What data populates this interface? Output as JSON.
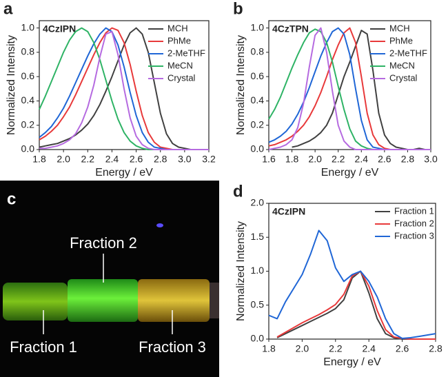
{
  "chart_data": [
    {
      "type": "line",
      "label": "a",
      "title": "4CzIPN",
      "xlabel": "Energy / eV",
      "ylabel": "Normalized Intensity",
      "x": [
        1.8,
        1.85,
        1.9,
        1.95,
        2.0,
        2.05,
        2.1,
        2.15,
        2.2,
        2.25,
        2.3,
        2.35,
        2.4,
        2.45,
        2.5,
        2.55,
        2.6,
        2.65,
        2.7,
        2.75,
        2.8,
        2.85,
        2.9,
        2.95,
        3.0,
        3.05,
        3.1,
        3.15,
        3.2
      ],
      "series": [
        {
          "name": "MCH",
          "color": "#404040",
          "values": [
            0.02,
            0.03,
            0.04,
            0.05,
            0.07,
            0.09,
            0.12,
            0.16,
            0.21,
            0.28,
            0.37,
            0.48,
            0.6,
            0.73,
            0.86,
            0.96,
            1.0,
            0.95,
            0.8,
            0.55,
            0.3,
            0.13,
            0.05,
            0.02,
            0.01,
            0,
            0,
            0,
            0
          ]
        },
        {
          "name": "PhMe",
          "color": "#e8393a",
          "values": [
            0.08,
            0.11,
            0.15,
            0.2,
            0.27,
            0.35,
            0.45,
            0.56,
            0.67,
            0.78,
            0.88,
            0.96,
            1.0,
            0.98,
            0.88,
            0.7,
            0.48,
            0.28,
            0.14,
            0.06,
            0.02,
            0.01,
            0,
            0,
            0,
            0,
            0,
            0,
            0
          ]
        },
        {
          "name": "2-MeTHF",
          "color": "#1f66d6",
          "values": [
            0.1,
            0.14,
            0.19,
            0.26,
            0.34,
            0.44,
            0.55,
            0.66,
            0.77,
            0.87,
            0.95,
            1.0,
            0.97,
            0.86,
            0.68,
            0.47,
            0.28,
            0.14,
            0.06,
            0.02,
            0.01,
            0,
            0,
            0,
            0,
            0,
            0,
            0,
            0
          ]
        },
        {
          "name": "MeCN",
          "color": "#2eb365",
          "values": [
            0.33,
            0.44,
            0.56,
            0.68,
            0.8,
            0.9,
            0.97,
            1.0,
            0.97,
            0.88,
            0.74,
            0.57,
            0.4,
            0.25,
            0.14,
            0.07,
            0.03,
            0.01,
            0,
            0,
            0,
            0,
            0,
            0,
            0,
            0,
            0,
            0,
            0
          ]
        },
        {
          "name": "Crystal",
          "color": "#b56ae0",
          "values": [
            0.01,
            0.01,
            0.02,
            0.03,
            0.05,
            0.08,
            0.13,
            0.22,
            0.35,
            0.53,
            0.76,
            0.95,
            0.97,
            0.78,
            0.5,
            0.26,
            0.11,
            0.04,
            0.01,
            0,
            0,
            0,
            0,
            0,
            0,
            0,
            0,
            0,
            0
          ]
        }
      ],
      "xlim": [
        1.8,
        3.2
      ],
      "xticks": [
        1.8,
        {
          "value": 2.0,
          "label": "2.0"
        },
        2.2,
        2.4,
        2.6,
        2.8,
        {
          "value": 3.0,
          "label": "3.0"
        },
        3.2
      ],
      "ylim": [
        0,
        1.06
      ],
      "yticks": [
        {
          "value": 0,
          "label": "0.0"
        },
        0.2,
        0.4,
        0.6,
        0.8,
        {
          "value": 1,
          "label": "1.0"
        }
      ],
      "legend": "upper right"
    },
    {
      "type": "line",
      "label": "b",
      "title": "4CzTPN",
      "xlabel": "Energy / eV",
      "ylabel": "Normalized Intensity",
      "x": [
        1.6,
        1.65,
        1.7,
        1.75,
        1.8,
        1.85,
        1.9,
        1.95,
        2.0,
        2.05,
        2.1,
        2.15,
        2.2,
        2.25,
        2.3,
        2.35,
        2.4,
        2.45,
        2.5,
        2.55,
        2.6,
        2.65,
        2.7,
        2.75,
        2.8,
        2.85,
        2.9,
        2.95,
        3.0
      ],
      "series": [
        {
          "name": "MCH",
          "color": "#404040",
          "values": [
            null,
            null,
            null,
            null,
            0.02,
            0.03,
            0.05,
            0.07,
            0.1,
            0.14,
            0.2,
            0.3,
            0.45,
            0.6,
            0.72,
            0.85,
            0.98,
            0.95,
            0.65,
            0.3,
            0.12,
            0.05,
            0.02,
            0.01,
            0,
            0,
            0.01,
            0,
            0
          ]
        },
        {
          "name": "PhMe",
          "color": "#e8393a",
          "values": [
            0.03,
            0.04,
            0.06,
            0.08,
            0.11,
            0.15,
            0.2,
            0.27,
            0.36,
            0.47,
            0.6,
            0.74,
            0.86,
            0.96,
            1.0,
            0.88,
            0.6,
            0.3,
            0.12,
            0.04,
            0.01,
            0,
            0,
            0,
            0,
            0,
            0,
            0,
            0
          ]
        },
        {
          "name": "2-MeTHF",
          "color": "#1f66d6",
          "values": [
            0.06,
            0.08,
            0.11,
            0.15,
            0.21,
            0.29,
            0.39,
            0.51,
            0.64,
            0.77,
            0.88,
            0.97,
            1.0,
            0.95,
            0.78,
            0.5,
            0.24,
            0.08,
            0.02,
            0.01,
            0,
            0,
            0,
            0,
            0,
            0,
            0,
            0,
            0
          ]
        },
        {
          "name": "MeCN",
          "color": "#2eb365",
          "values": [
            0.25,
            0.33,
            0.43,
            0.55,
            0.67,
            0.78,
            0.88,
            0.96,
            0.99,
            0.97,
            0.88,
            0.72,
            0.52,
            0.33,
            0.17,
            0.07,
            0.03,
            0.01,
            0,
            0,
            0,
            0,
            0,
            0,
            0,
            0,
            0,
            0,
            0
          ]
        },
        {
          "name": "Crystal",
          "color": "#b56ae0",
          "values": [
            0,
            0.01,
            0.02,
            0.04,
            0.08,
            0.18,
            0.38,
            0.68,
            0.94,
            1.0,
            0.8,
            0.48,
            0.2,
            0.07,
            0.02,
            0,
            0,
            0,
            0,
            0,
            0,
            0,
            0,
            0,
            0,
            0,
            0,
            0,
            0
          ]
        }
      ],
      "xlim": [
        1.6,
        3.0
      ],
      "xticks": [
        1.6,
        1.8,
        {
          "value": 2.0,
          "label": "2.0"
        },
        2.2,
        2.4,
        2.6,
        2.8,
        {
          "value": 3.0,
          "label": "3.0"
        }
      ],
      "ylim": [
        0,
        1.06
      ],
      "yticks": [
        {
          "value": 0,
          "label": "0.0"
        },
        0.2,
        0.4,
        0.6,
        0.8,
        {
          "value": 1,
          "label": "1.0"
        }
      ],
      "legend": "upper right"
    },
    {
      "type": "line",
      "label": "d",
      "title": "4CzIPN",
      "xlabel": "Energy / eV",
      "ylabel": "Normalized Intensity",
      "x": [
        1.8,
        1.85,
        1.9,
        1.95,
        2.0,
        2.05,
        2.1,
        2.15,
        2.2,
        2.25,
        2.3,
        2.35,
        2.4,
        2.45,
        2.5,
        2.55,
        2.6,
        2.65,
        2.7,
        2.75,
        2.8
      ],
      "series": [
        {
          "name": "Fraction 1",
          "color": "#404040",
          "values": [
            null,
            0.02,
            0.08,
            0.14,
            0.2,
            0.26,
            0.32,
            0.38,
            0.45,
            0.58,
            0.9,
            1.0,
            0.68,
            0.3,
            0.08,
            0.02,
            0,
            0,
            0,
            0,
            0
          ]
        },
        {
          "name": "Fraction 2",
          "color": "#e8393a",
          "values": [
            null,
            0.03,
            0.1,
            0.17,
            0.24,
            0.3,
            0.36,
            0.43,
            0.51,
            0.66,
            0.93,
            1.0,
            0.78,
            0.42,
            0.14,
            0.03,
            0.01,
            0,
            0,
            0,
            0
          ]
        },
        {
          "name": "Fraction 3",
          "color": "#1f66d6",
          "values": [
            0.35,
            0.3,
            0.55,
            0.75,
            0.95,
            1.25,
            1.6,
            1.45,
            1.05,
            0.85,
            0.95,
            1.0,
            0.85,
            0.62,
            0.3,
            0.08,
            0.01,
            0.02,
            0.04,
            0.06,
            0.08
          ]
        }
      ],
      "xlim": [
        1.8,
        2.8
      ],
      "xticks": [
        1.8,
        {
          "value": 2.0,
          "label": "2.0"
        },
        2.2,
        2.4,
        2.6,
        2.8
      ],
      "ylim": [
        0,
        2.0
      ],
      "yticks": [
        {
          "value": 0,
          "label": "0.0"
        },
        0.5,
        {
          "value": 1,
          "label": "1.0"
        },
        1.5,
        {
          "value": 2,
          "label": "2.0"
        }
      ],
      "legend": "upper right"
    }
  ],
  "photo": {
    "label": "c",
    "fractions": [
      "Fraction 1",
      "Fraction 2",
      "Fraction 3"
    ]
  }
}
